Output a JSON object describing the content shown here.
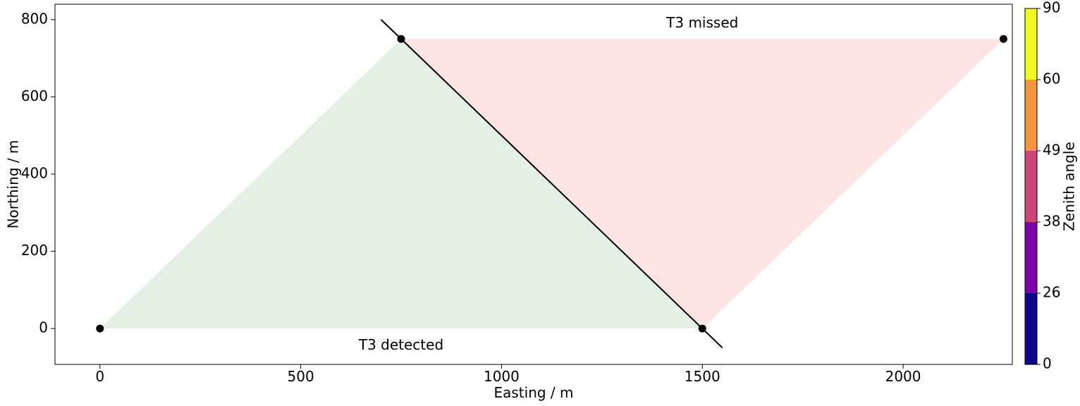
{
  "chart_data": {
    "type": "scatter",
    "xlabel": "Easting / m",
    "ylabel": "Northing / m",
    "xlim": [
      -112,
      2272
    ],
    "ylim": [
      -93,
      840
    ],
    "xticks": [
      0,
      500,
      1000,
      1500,
      2000
    ],
    "yticks": [
      0,
      200,
      400,
      600,
      800
    ],
    "grid": false,
    "points": [
      {
        "x": 0,
        "y": 0
      },
      {
        "x": 750,
        "y": 750
      },
      {
        "x": 1500,
        "y": 0
      },
      {
        "x": 2250,
        "y": 750
      }
    ],
    "regions": [
      {
        "label": "T3 detected",
        "vertices": [
          [
            0,
            0
          ],
          [
            750,
            750
          ],
          [
            1500,
            0
          ]
        ],
        "color": "#e5f0e5"
      },
      {
        "label": "T3 missed",
        "vertices": [
          [
            750,
            750
          ],
          [
            2250,
            750
          ],
          [
            1500,
            0
          ]
        ],
        "color": "#ffe4e4"
      }
    ],
    "line": {
      "from": [
        700,
        800
      ],
      "to": [
        1550,
        -50
      ],
      "color": "#000000"
    },
    "annotations": [
      {
        "text": "T3 missed",
        "x": 1500,
        "y": 790
      },
      {
        "text": "T3 detected",
        "x": 750,
        "y": -45
      }
    ],
    "colorbar": {
      "label": "Zenith angle",
      "boundaries": [
        0,
        26,
        38,
        49,
        60,
        90
      ],
      "tick_labels": [
        "0",
        "26",
        "38",
        "49",
        "60",
        "90"
      ],
      "colors": [
        "#0d0887",
        "#7e03a8",
        "#cc4778",
        "#f89540",
        "#f0f921"
      ]
    }
  }
}
